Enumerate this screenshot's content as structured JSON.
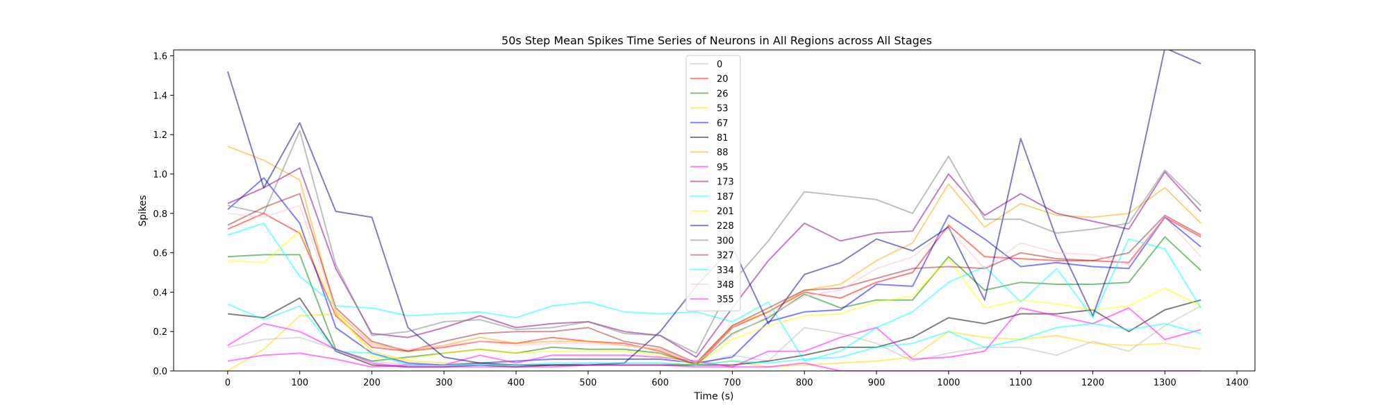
{
  "chart_data": {
    "type": "line",
    "title": "50s Step Mean Spikes Time Series of Neurons in All Regions across All Stages",
    "xlabel": "Time (s)",
    "ylabel": "Spikes",
    "xlim": [
      -75,
      1425
    ],
    "ylim": [
      0,
      1.63
    ],
    "xticks": [
      0,
      100,
      200,
      300,
      400,
      500,
      600,
      700,
      800,
      900,
      1000,
      1100,
      1200,
      1300,
      1400
    ],
    "yticks": [
      0.0,
      0.2,
      0.4,
      0.6,
      0.8,
      1.0,
      1.2,
      1.4,
      1.6
    ],
    "xtick_labels": [
      "0",
      "100",
      "200",
      "300",
      "400",
      "500",
      "600",
      "700",
      "800",
      "900",
      "1000",
      "1100",
      "1200",
      "1300",
      "1400"
    ],
    "ytick_labels": [
      "0.0",
      "0.2",
      "0.4",
      "0.6",
      "0.8",
      "1.0",
      "1.2",
      "1.4",
      "1.6"
    ],
    "grid": false,
    "legend_position": "top-center",
    "x": [
      0,
      50,
      100,
      150,
      200,
      250,
      300,
      350,
      400,
      450,
      500,
      550,
      600,
      650,
      700,
      750,
      800,
      850,
      900,
      950,
      1000,
      1050,
      1100,
      1150,
      1200,
      1250,
      1300,
      1350
    ],
    "series": [
      {
        "name": "0",
        "color": "#bdbdbd",
        "values": [
          0.12,
          0.16,
          0.17,
          0.11,
          0.05,
          0.03,
          0.03,
          0.03,
          0.03,
          0.03,
          0.04,
          0.04,
          0.04,
          0.03,
          0.08,
          0.05,
          0.22,
          0.19,
          0.14,
          0.05,
          0.09,
          0.12,
          0.12,
          0.08,
          0.15,
          0.1,
          0.23,
          0.33
        ]
      },
      {
        "name": "20",
        "color": "#ff0000",
        "values": [
          0.72,
          0.8,
          0.7,
          0.28,
          0.12,
          0.1,
          0.12,
          0.15,
          0.14,
          0.17,
          0.15,
          0.14,
          0.1,
          0.03,
          0.22,
          0.3,
          0.4,
          0.37,
          0.45,
          0.5,
          0.74,
          0.58,
          0.57,
          0.56,
          0.56,
          0.55,
          0.78,
          0.68
        ]
      },
      {
        "name": "26",
        "color": "#008000",
        "values": [
          0.58,
          0.59,
          0.59,
          0.11,
          0.05,
          0.07,
          0.09,
          0.11,
          0.09,
          0.12,
          0.11,
          0.11,
          0.09,
          0.03,
          0.19,
          0.27,
          0.39,
          0.32,
          0.36,
          0.36,
          0.58,
          0.41,
          0.45,
          0.44,
          0.44,
          0.45,
          0.68,
          0.51
        ]
      },
      {
        "name": "53",
        "color": "#ffd700",
        "values": [
          0.0,
          0.11,
          0.28,
          0.29,
          0.1,
          0.05,
          0.04,
          0.04,
          0.03,
          0.03,
          0.03,
          0.03,
          0.03,
          0.03,
          0.05,
          0.02,
          0.03,
          0.04,
          0.05,
          0.07,
          0.2,
          0.17,
          0.16,
          0.18,
          0.14,
          0.13,
          0.14,
          0.11
        ]
      },
      {
        "name": "67",
        "color": "#0000ff",
        "values": [
          0.82,
          0.98,
          0.75,
          0.22,
          0.09,
          0.04,
          0.03,
          0.04,
          0.05,
          0.06,
          0.06,
          0.06,
          0.06,
          0.04,
          0.07,
          0.25,
          0.3,
          0.31,
          0.44,
          0.43,
          0.79,
          0.67,
          0.53,
          0.55,
          0.53,
          0.52,
          0.78,
          0.63
        ]
      },
      {
        "name": "81",
        "color": "#000000",
        "values": [
          0.29,
          0.27,
          0.37,
          0.1,
          0.03,
          0.02,
          0.02,
          0.03,
          0.02,
          0.03,
          0.03,
          0.03,
          0.03,
          0.03,
          0.03,
          0.05,
          0.08,
          0.12,
          0.12,
          0.17,
          0.27,
          0.24,
          0.29,
          0.29,
          0.31,
          0.2,
          0.31,
          0.36
        ]
      },
      {
        "name": "88",
        "color": "#ffa500",
        "values": [
          1.14,
          1.07,
          0.97,
          0.3,
          0.14,
          0.1,
          0.13,
          0.17,
          0.14,
          0.15,
          0.15,
          0.13,
          0.11,
          0.04,
          0.23,
          0.3,
          0.41,
          0.44,
          0.56,
          0.65,
          0.95,
          0.73,
          0.85,
          0.79,
          0.78,
          0.8,
          0.93,
          0.75
        ]
      },
      {
        "name": "95",
        "color": "#ff00ff",
        "values": [
          0.05,
          0.08,
          0.09,
          0.06,
          0.02,
          0.03,
          0.03,
          0.08,
          0.04,
          0.08,
          0.08,
          0.08,
          0.07,
          0.05,
          0.02,
          0.1,
          0.1,
          0.17,
          0.22,
          0.06,
          0.07,
          0.1,
          0.32,
          0.28,
          0.24,
          0.32,
          0.16,
          0.21
        ]
      },
      {
        "name": "173",
        "color": "#800080",
        "values": [
          0.85,
          0.93,
          1.03,
          0.52,
          0.19,
          0.17,
          0.22,
          0.28,
          0.22,
          0.24,
          0.25,
          0.2,
          0.18,
          0.07,
          0.32,
          0.56,
          0.75,
          0.66,
          0.7,
          0.71,
          1.0,
          0.79,
          0.9,
          0.8,
          0.76,
          0.72,
          1.01,
          0.81
        ]
      },
      {
        "name": "187",
        "color": "#00ffff",
        "values": [
          0.69,
          0.75,
          0.48,
          0.33,
          0.32,
          0.28,
          0.29,
          0.3,
          0.27,
          0.33,
          0.35,
          0.3,
          0.29,
          0.3,
          0.25,
          0.35,
          0.05,
          0.1,
          0.22,
          0.3,
          0.45,
          0.53,
          0.35,
          0.52,
          0.27,
          0.67,
          0.62,
          0.32
        ]
      },
      {
        "name": "201",
        "color": "#ffff00",
        "values": [
          0.56,
          0.55,
          0.71,
          0.31,
          0.07,
          0.06,
          0.09,
          0.11,
          0.09,
          0.1,
          0.1,
          0.1,
          0.08,
          0.03,
          0.16,
          0.23,
          0.28,
          0.29,
          0.35,
          0.38,
          0.57,
          0.32,
          0.36,
          0.34,
          0.31,
          0.33,
          0.42,
          0.33
        ]
      },
      {
        "name": "228",
        "color": "#000080",
        "values": [
          1.52,
          0.93,
          1.26,
          0.81,
          0.78,
          0.22,
          0.07,
          0.04,
          0.03,
          0.03,
          0.03,
          0.04,
          0.2,
          0.43,
          0.63,
          0.24,
          0.49,
          0.55,
          0.67,
          0.61,
          0.73,
          0.36,
          1.18,
          0.67,
          0.28,
          0.79,
          1.64,
          1.56
        ]
      },
      {
        "name": "300",
        "color": "#808080",
        "values": [
          0.84,
          0.8,
          1.22,
          0.54,
          0.18,
          0.2,
          0.25,
          0.26,
          0.21,
          0.22,
          0.25,
          0.19,
          0.18,
          0.09,
          0.45,
          0.66,
          0.91,
          0.89,
          0.87,
          0.8,
          1.09,
          0.77,
          0.77,
          0.7,
          0.72,
          0.75,
          1.02,
          0.84
        ]
      },
      {
        "name": "327",
        "color": "#a52a2a",
        "values": [
          0.74,
          0.83,
          0.9,
          0.32,
          0.15,
          0.1,
          0.15,
          0.19,
          0.2,
          0.2,
          0.22,
          0.15,
          0.12,
          0.04,
          0.23,
          0.32,
          0.41,
          0.42,
          0.47,
          0.52,
          0.53,
          0.52,
          0.6,
          0.57,
          0.56,
          0.6,
          0.79,
          0.69
        ]
      },
      {
        "name": "334",
        "color": "#00ffff",
        "values": [
          0.34,
          0.26,
          0.33,
          0.1,
          0.09,
          0.03,
          0.03,
          0.03,
          0.03,
          0.04,
          0.04,
          0.04,
          0.04,
          0.03,
          0.05,
          0.04,
          0.06,
          0.07,
          0.12,
          0.14,
          0.2,
          0.12,
          0.16,
          0.22,
          0.24,
          0.21,
          0.24,
          0.19
        ]
      },
      {
        "name": "348",
        "color": "#ffc0cb",
        "values": [
          0.8,
          0.78,
          0.84,
          0.31,
          0.13,
          0.11,
          0.13,
          0.15,
          0.13,
          0.14,
          0.14,
          0.13,
          0.11,
          0.04,
          0.18,
          0.28,
          0.38,
          0.41,
          0.52,
          0.58,
          0.72,
          0.52,
          0.65,
          0.6,
          0.59,
          0.54,
          0.78,
          0.58
        ]
      },
      {
        "name": "355",
        "color": "#ff00ff",
        "values": [
          0.13,
          0.24,
          0.2,
          0.11,
          0.04,
          0.02,
          0.02,
          0.02,
          0.02,
          0.02,
          0.03,
          0.03,
          0.03,
          0.02,
          0.02,
          0.02,
          0.04,
          0.0,
          0.0,
          0.0,
          0.0,
          0.0,
          0.0,
          0.0,
          0.0,
          0.0,
          0.0,
          0.0
        ]
      }
    ]
  }
}
